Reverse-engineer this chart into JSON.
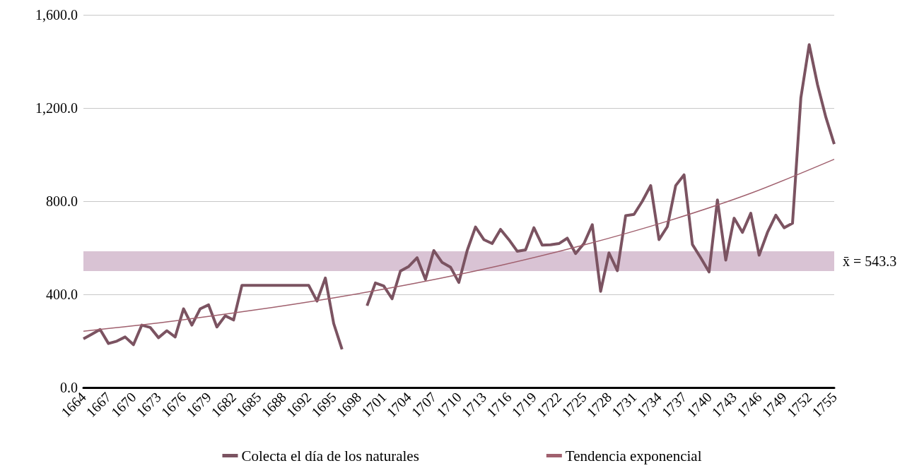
{
  "chart_data": {
    "type": "line",
    "categories": [
      "1664",
      null,
      null,
      "1667",
      null,
      null,
      "1670",
      null,
      null,
      "1673",
      null,
      null,
      "1676",
      null,
      null,
      "1679",
      null,
      null,
      "1682",
      null,
      null,
      "1685",
      null,
      null,
      "1688",
      null,
      null,
      "1692",
      null,
      null,
      "1695",
      null,
      null,
      "1698",
      null,
      null,
      "1701",
      null,
      null,
      "1704",
      null,
      null,
      "1707",
      null,
      null,
      "1710",
      null,
      null,
      "1713",
      null,
      null,
      "1716",
      null,
      null,
      "1719",
      null,
      null,
      "1722",
      null,
      null,
      "1725",
      null,
      null,
      "1728",
      null,
      null,
      "1731",
      null,
      null,
      "1734",
      null,
      null,
      "1737",
      null,
      null,
      "1740",
      null,
      null,
      "1743",
      null,
      null,
      "1746",
      null,
      null,
      "1749",
      null,
      null,
      "1752",
      null,
      null,
      "1755"
    ],
    "series": [
      {
        "name": "Colecta el día de los naturales",
        "color": "#7b5361",
        "values": [
          209,
          229,
          249,
          189,
          199,
          217,
          184,
          268,
          258,
          214,
          244,
          217,
          338,
          268,
          338,
          355,
          260,
          308,
          290,
          439,
          439,
          439,
          439,
          439,
          439,
          439,
          439,
          439,
          371,
          470,
          275,
          164,
          null,
          null,
          351,
          449,
          436,
          381,
          500,
          520,
          557,
          464,
          588,
          537,
          517,
          451,
          588,
          689,
          635,
          618,
          679,
          635,
          585,
          591,
          686,
          611,
          613,
          618,
          641,
          575,
          618,
          699,
          413,
          578,
          502,
          738,
          743,
          800,
          867,
          635,
          691,
          867,
          913,
          614,
          557,
          496,
          805,
          547,
          727,
          666,
          748,
          568,
          666,
          740,
          686,
          705,
          1243,
          1472,
          1300,
          1160,
          1045
        ]
      },
      {
        "name": "Tendencia exponencial",
        "type": "line",
        "color": "#a0606e",
        "values": [
          242,
          null,
          null,
          null,
          null,
          null,
          null,
          null,
          null,
          null,
          282,
          null,
          null,
          null,
          null,
          null,
          null,
          null,
          null,
          null,
          330,
          null,
          null,
          null,
          null,
          null,
          null,
          null,
          null,
          null,
          385,
          null,
          null,
          null,
          null,
          null,
          null,
          null,
          null,
          null,
          449,
          null,
          null,
          null,
          null,
          null,
          null,
          null,
          null,
          null,
          524,
          null,
          null,
          null,
          null,
          null,
          null,
          null,
          null,
          null,
          612,
          null,
          null,
          null,
          null,
          null,
          null,
          null,
          null,
          null,
          714,
          null,
          null,
          null,
          null,
          null,
          null,
          null,
          null,
          null,
          834,
          null,
          null,
          null,
          null,
          null,
          null,
          null,
          null,
          null,
          980
        ]
      }
    ],
    "ylim": [
      0,
      1600
    ],
    "yticks": [
      {
        "value": 0,
        "label": "0.0"
      },
      {
        "value": 400,
        "label": "400.0"
      },
      {
        "value": 800,
        "label": "800.0"
      },
      {
        "value": 1200,
        "label": "1,200.0"
      },
      {
        "value": 1600,
        "label": "1,600.0"
      }
    ],
    "bands": [
      {
        "axis": "y",
        "from": 500,
        "to": 585,
        "label": "x̄ = 543.3",
        "color": "#d9c3d4"
      }
    ],
    "grid": "y",
    "legend": "bottom",
    "marker": "none"
  }
}
